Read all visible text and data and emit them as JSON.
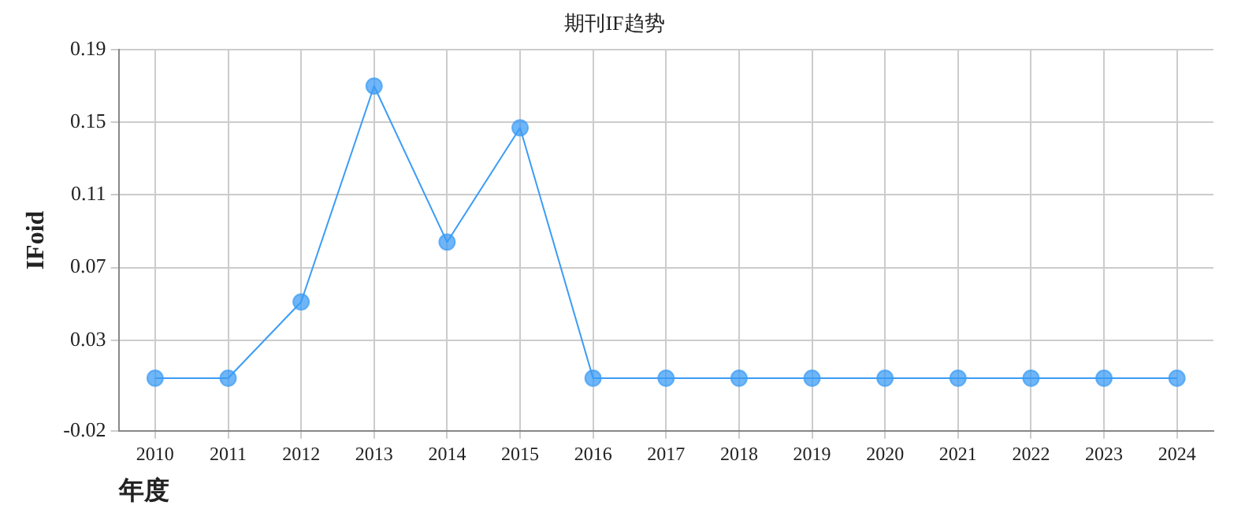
{
  "chart_data": {
    "type": "line",
    "title": "期刊IF趋势",
    "xlabel": "年度",
    "ylabel": "IFoid",
    "categories": [
      "2010",
      "2011",
      "2012",
      "2013",
      "2014",
      "2015",
      "2016",
      "2017",
      "2018",
      "2019",
      "2020",
      "2021",
      "2022",
      "2023",
      "2024"
    ],
    "series": [
      {
        "color": "#3b9cf5",
        "values": [
          0.009,
          0.009,
          0.051,
          0.17,
          0.084,
          0.147,
          0.009,
          0.009,
          0.009,
          0.009,
          0.009,
          0.009,
          0.009,
          0.009,
          0.009
        ]
      }
    ],
    "ylim": [
      -0.02,
      0.19
    ],
    "yticks": [
      -0.02,
      0.03,
      0.07,
      0.11,
      0.15,
      0.19
    ],
    "grid": true,
    "legend": false,
    "marker": "circle"
  }
}
